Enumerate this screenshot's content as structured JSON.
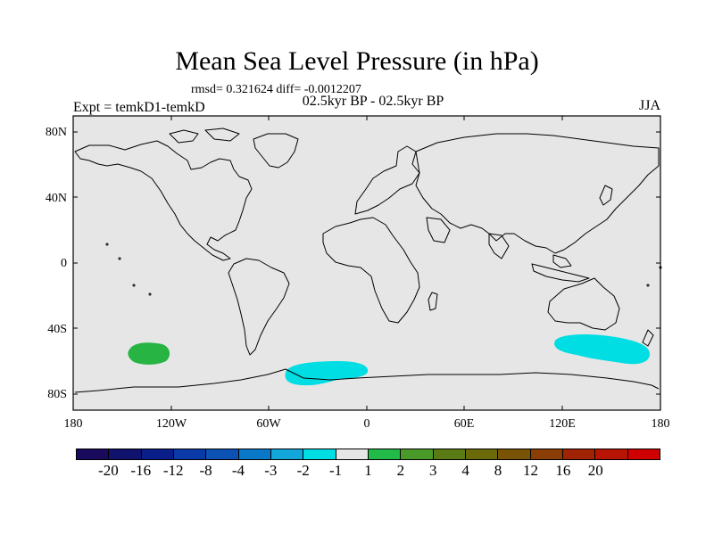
{
  "title": "Mean Sea Level Pressure (in hPa)",
  "stats": "rmsd= 0.321624 diff= -0.0012207",
  "experiment": "Expt = temkD1-temkD",
  "period": "02.5kyr BP - 02.5kyr BP",
  "season": "JJA",
  "colors": {
    "ocean": "#e6e6e6",
    "coastline": "#000000",
    "anomaly_cyan": "#00dde3",
    "anomaly_green": "#27b442"
  },
  "latitude_labels": [
    "80N",
    "40N",
    "0",
    "40S",
    "80S"
  ],
  "longitude_labels": [
    "180",
    "120W",
    "60W",
    "0",
    "60E",
    "120E",
    "180"
  ],
  "colorbar": {
    "colors": [
      "#1a0a5e",
      "#10126e",
      "#0a1e8a",
      "#0a3aa8",
      "#0c52b4",
      "#0a78c8",
      "#12a6da",
      "#00dde3",
      "#e6e6e6",
      "#22bb4a",
      "#4a9a2a",
      "#5a7a14",
      "#6a6a0a",
      "#7a5406",
      "#8a3e06",
      "#a02404",
      "#b81404",
      "#d00000"
    ],
    "labels": [
      "-20",
      "-16",
      "-12",
      "-8",
      "-4",
      "-3",
      "-2",
      "-1",
      "1",
      "2",
      "3",
      "4",
      "8",
      "12",
      "16",
      "20"
    ]
  }
}
